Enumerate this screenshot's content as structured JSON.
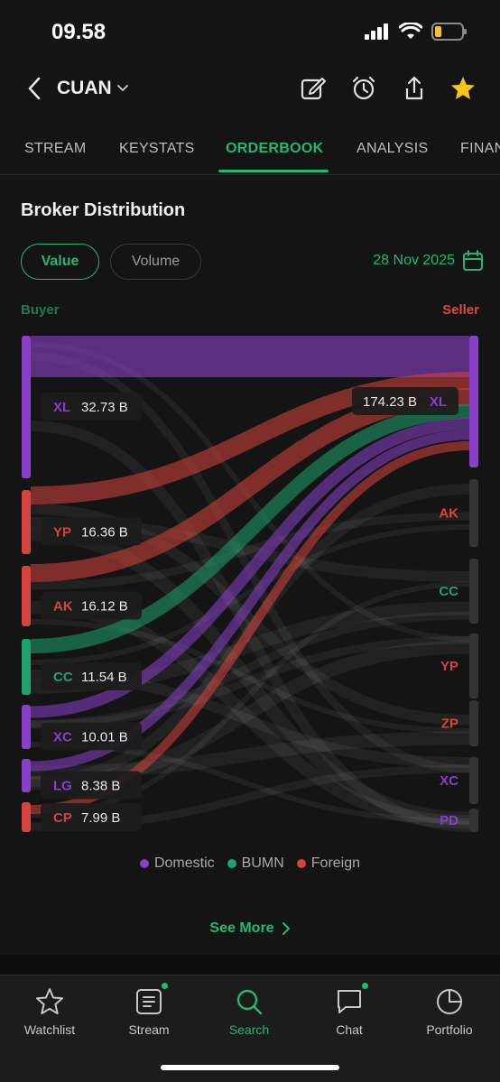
{
  "status": {
    "time": "09.58"
  },
  "header": {
    "ticker": "CUAN"
  },
  "tabs": [
    {
      "label": "STREAM",
      "active": false
    },
    {
      "label": "KEYSTATS",
      "active": false
    },
    {
      "label": "ORDERBOOK",
      "active": true
    },
    {
      "label": "ANALYSIS",
      "active": false
    },
    {
      "label": "FINAN",
      "active": false
    }
  ],
  "section": {
    "title": "Broker Distribution",
    "toggle": {
      "value_label": "Value",
      "volume_label": "Volume",
      "selected": "Value"
    },
    "date": "28 Nov 2025",
    "buyer_label": "Buyer",
    "seller_label": "Seller"
  },
  "colors": {
    "domestic": "#8a3fc8",
    "bumn": "#1fa36f",
    "foreign": "#d9433f",
    "accent": "#21b873"
  },
  "buyers": [
    {
      "code": "XL",
      "value": "32.73 B",
      "type": "domestic"
    },
    {
      "code": "YP",
      "value": "16.36 B",
      "type": "foreign"
    },
    {
      "code": "AK",
      "value": "16.12 B",
      "type": "foreign"
    },
    {
      "code": "CC",
      "value": "11.54 B",
      "type": "bumn"
    },
    {
      "code": "XC",
      "value": "10.01 B",
      "type": "domestic"
    },
    {
      "code": "LG",
      "value": "8.38 B",
      "type": "domestic"
    },
    {
      "code": "CP",
      "value": "7.99 B",
      "type": "foreign"
    }
  ],
  "sellers": [
    {
      "code": "XL",
      "value": "174.23 B",
      "type": "domestic"
    },
    {
      "code": "AK",
      "type": "foreign"
    },
    {
      "code": "CC",
      "type": "bumn"
    },
    {
      "code": "YP",
      "type": "foreign"
    },
    {
      "code": "ZP",
      "type": "foreign"
    },
    {
      "code": "XC",
      "type": "domestic"
    },
    {
      "code": "PD",
      "type": "domestic"
    }
  ],
  "legend": [
    {
      "label": "Domestic",
      "type": "domestic"
    },
    {
      "label": "BUMN",
      "type": "bumn"
    },
    {
      "label": "Foreign",
      "type": "foreign"
    }
  ],
  "see_more": "See More",
  "nav": [
    {
      "label": "Watchlist",
      "icon": "star-icon",
      "active": false,
      "badge": false
    },
    {
      "label": "Stream",
      "icon": "stream-icon",
      "active": false,
      "badge": true
    },
    {
      "label": "Search",
      "icon": "search-icon",
      "active": true,
      "badge": false
    },
    {
      "label": "Chat",
      "icon": "chat-icon",
      "active": false,
      "badge": true
    },
    {
      "label": "Portfolio",
      "icon": "pie-icon",
      "active": false,
      "badge": false
    }
  ]
}
